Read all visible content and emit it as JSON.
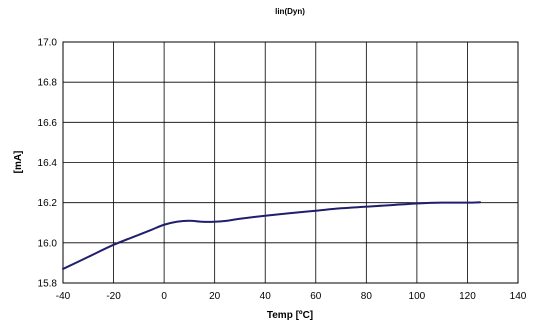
{
  "chart_data": {
    "type": "line",
    "title": "lin(Dyn)",
    "xlabel": "Temp [ºC]",
    "ylabel": "[mA]",
    "xlim": [
      -40,
      140
    ],
    "ylim": [
      15.8,
      17.0
    ],
    "x_ticks": [
      -40,
      -20,
      0,
      20,
      40,
      60,
      80,
      100,
      120,
      140
    ],
    "y_ticks": [
      15.8,
      16.0,
      16.2,
      16.4,
      16.6,
      16.8,
      17.0
    ],
    "x_tick_labels": [
      "-40",
      "-20",
      "0",
      "20",
      "40",
      "60",
      "80",
      "100",
      "120",
      "140"
    ],
    "y_tick_labels": [
      "15.8",
      "16.0",
      "16.2",
      "16.4",
      "16.6",
      "16.8",
      "17.0"
    ],
    "grid": true,
    "legend": "none",
    "series_color": "#1f1f6e",
    "series": [
      {
        "x": [
          -40,
          -30,
          -20,
          -10,
          -5,
          0,
          5,
          10,
          15,
          20,
          25,
          30,
          40,
          50,
          60,
          70,
          80,
          90,
          100,
          110,
          120,
          125
        ],
        "y": [
          15.87,
          15.93,
          15.99,
          16.04,
          16.065,
          16.09,
          16.105,
          16.11,
          16.105,
          16.105,
          16.11,
          16.12,
          16.135,
          16.148,
          16.16,
          16.172,
          16.18,
          16.188,
          16.196,
          16.2,
          16.2,
          16.202
        ]
      }
    ]
  }
}
